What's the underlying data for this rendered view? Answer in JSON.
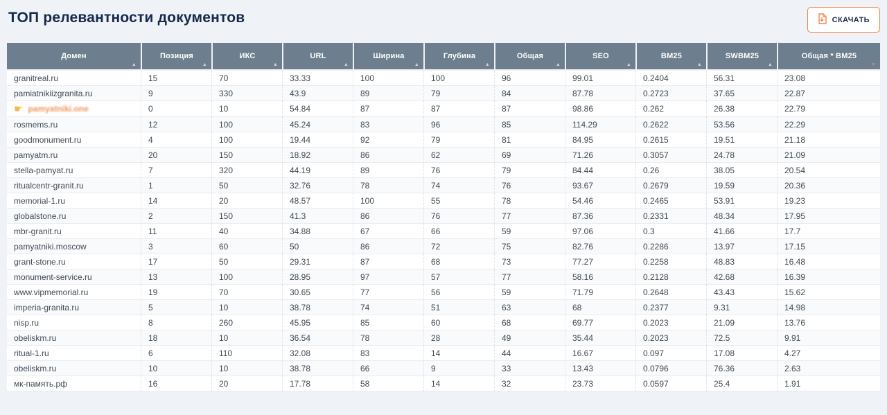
{
  "page": {
    "title": "ТОП релевантности документов"
  },
  "toolbar": {
    "download_label": "СКАЧАТЬ"
  },
  "icons": {
    "sort_asc": "▲",
    "sort_desc": "▼",
    "pointer": "☛",
    "download": "download-document-icon"
  },
  "colors": {
    "accent_orange": "#f08543",
    "header_bg": "#6d7f8e",
    "title_navy": "#16294e",
    "highlight_text": "#f6955e",
    "pointer_icon": "#f7b844"
  },
  "table": {
    "columns": [
      "Домен",
      "Позиция",
      "ИКС",
      "URL",
      "Ширина",
      "Глубина",
      "Общая",
      "SEO",
      "BM25",
      "SWBM25",
      "Общая * BM25"
    ],
    "sorted_column": "Общая * BM25",
    "sort_direction": "desc",
    "rows": [
      {
        "highlighted": false,
        "cells": [
          "granitreal.ru",
          "15",
          "70",
          "33.33",
          "100",
          "100",
          "96",
          "99.01",
          "0.2404",
          "56.31",
          "23.08"
        ]
      },
      {
        "highlighted": false,
        "cells": [
          "pamiatnikiizgranita.ru",
          "9",
          "330",
          "43.9",
          "89",
          "79",
          "84",
          "87.78",
          "0.2723",
          "37.65",
          "22.87"
        ]
      },
      {
        "highlighted": true,
        "cells": [
          "pamyatniki.one",
          "0",
          "10",
          "54.84",
          "87",
          "87",
          "87",
          "98.86",
          "0.262",
          "26.38",
          "22.79"
        ]
      },
      {
        "highlighted": false,
        "cells": [
          "rosmems.ru",
          "12",
          "100",
          "45.24",
          "83",
          "96",
          "85",
          "114.29",
          "0.2622",
          "53.56",
          "22.29"
        ]
      },
      {
        "highlighted": false,
        "cells": [
          "goodmonument.ru",
          "4",
          "100",
          "19.44",
          "92",
          "79",
          "81",
          "84.95",
          "0.2615",
          "19.51",
          "21.18"
        ]
      },
      {
        "highlighted": false,
        "cells": [
          "pamyatm.ru",
          "20",
          "150",
          "18.92",
          "86",
          "62",
          "69",
          "71.26",
          "0.3057",
          "24.78",
          "21.09"
        ]
      },
      {
        "highlighted": false,
        "cells": [
          "stella-pamyat.ru",
          "7",
          "320",
          "44.19",
          "89",
          "76",
          "79",
          "84.44",
          "0.26",
          "38.05",
          "20.54"
        ]
      },
      {
        "highlighted": false,
        "cells": [
          "ritualcentr-granit.ru",
          "1",
          "50",
          "32.76",
          "78",
          "74",
          "76",
          "93.67",
          "0.2679",
          "19.59",
          "20.36"
        ]
      },
      {
        "highlighted": false,
        "cells": [
          "memorial-1.ru",
          "14",
          "20",
          "48.57",
          "100",
          "55",
          "78",
          "54.46",
          "0.2465",
          "53.91",
          "19.23"
        ]
      },
      {
        "highlighted": false,
        "cells": [
          "globalstone.ru",
          "2",
          "150",
          "41.3",
          "86",
          "76",
          "77",
          "87.36",
          "0.2331",
          "48.34",
          "17.95"
        ]
      },
      {
        "highlighted": false,
        "cells": [
          "mbr-granit.ru",
          "11",
          "40",
          "34.88",
          "67",
          "66",
          "59",
          "97.06",
          "0.3",
          "41.66",
          "17.7"
        ]
      },
      {
        "highlighted": false,
        "cells": [
          "pamyatniki.moscow",
          "3",
          "60",
          "50",
          "86",
          "72",
          "75",
          "82.76",
          "0.2286",
          "13.97",
          "17.15"
        ]
      },
      {
        "highlighted": false,
        "cells": [
          "grant-stone.ru",
          "17",
          "50",
          "29.31",
          "87",
          "68",
          "73",
          "77.27",
          "0.2258",
          "48.83",
          "16.48"
        ]
      },
      {
        "highlighted": false,
        "cells": [
          "monument-service.ru",
          "13",
          "100",
          "28.95",
          "97",
          "57",
          "77",
          "58.16",
          "0.2128",
          "42.68",
          "16.39"
        ]
      },
      {
        "highlighted": false,
        "cells": [
          "www.vipmemorial.ru",
          "19",
          "70",
          "30.65",
          "77",
          "56",
          "59",
          "71.79",
          "0.2648",
          "43.43",
          "15.62"
        ]
      },
      {
        "highlighted": false,
        "cells": [
          "imperia-granita.ru",
          "5",
          "10",
          "38.78",
          "74",
          "51",
          "63",
          "68",
          "0.2377",
          "9.31",
          "14.98"
        ]
      },
      {
        "highlighted": false,
        "cells": [
          "nisp.ru",
          "8",
          "260",
          "45.95",
          "85",
          "60",
          "68",
          "69.77",
          "0.2023",
          "21.09",
          "13.76"
        ]
      },
      {
        "highlighted": false,
        "cells": [
          "obeliskm.ru",
          "18",
          "10",
          "36.54",
          "78",
          "28",
          "49",
          "35.44",
          "0.2023",
          "72.5",
          "9.91"
        ]
      },
      {
        "highlighted": false,
        "cells": [
          "ritual-1.ru",
          "6",
          "110",
          "32.08",
          "83",
          "14",
          "44",
          "16.67",
          "0.097",
          "17.08",
          "4.27"
        ]
      },
      {
        "highlighted": false,
        "cells": [
          "obeliskm.ru",
          "10",
          "10",
          "38.78",
          "66",
          "9",
          "33",
          "13.43",
          "0.0796",
          "76.36",
          "2.63"
        ]
      },
      {
        "highlighted": false,
        "cells": [
          "мк-память.рф",
          "16",
          "20",
          "17.78",
          "58",
          "14",
          "32",
          "23.73",
          "0.0597",
          "25.4",
          "1.91"
        ]
      }
    ]
  }
}
